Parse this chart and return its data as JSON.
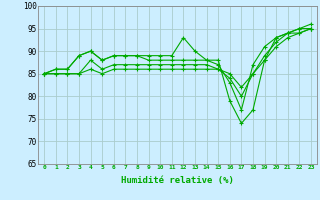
{
  "xlabel": "Humidité relative (%)",
  "ylabel": "",
  "xlim": [
    -0.5,
    23.5
  ],
  "ylim": [
    65,
    100
  ],
  "yticks": [
    65,
    70,
    75,
    80,
    85,
    90,
    95,
    100
  ],
  "xticks": [
    0,
    1,
    2,
    3,
    4,
    5,
    6,
    7,
    8,
    9,
    10,
    11,
    12,
    13,
    14,
    15,
    16,
    17,
    18,
    19,
    20,
    21,
    22,
    23
  ],
  "bg_color": "#cceeff",
  "grid_color": "#aacccc",
  "line_color": "#00aa00",
  "lines": [
    [
      85,
      86,
      86,
      89,
      90,
      88,
      89,
      89,
      89,
      89,
      89,
      89,
      93,
      90,
      88,
      88,
      79,
      74,
      77,
      88,
      93,
      94,
      95,
      96
    ],
    [
      85,
      86,
      86,
      89,
      90,
      88,
      89,
      89,
      89,
      88,
      88,
      88,
      88,
      88,
      88,
      87,
      83,
      77,
      87,
      91,
      93,
      94,
      95,
      95
    ],
    [
      85,
      85,
      85,
      85,
      88,
      86,
      87,
      87,
      87,
      87,
      87,
      87,
      87,
      87,
      87,
      86,
      84,
      80,
      85,
      89,
      92,
      94,
      94,
      95
    ],
    [
      85,
      85,
      85,
      85,
      86,
      85,
      86,
      86,
      86,
      86,
      86,
      86,
      86,
      86,
      86,
      86,
      85,
      82,
      85,
      88,
      91,
      93,
      94,
      95
    ]
  ]
}
